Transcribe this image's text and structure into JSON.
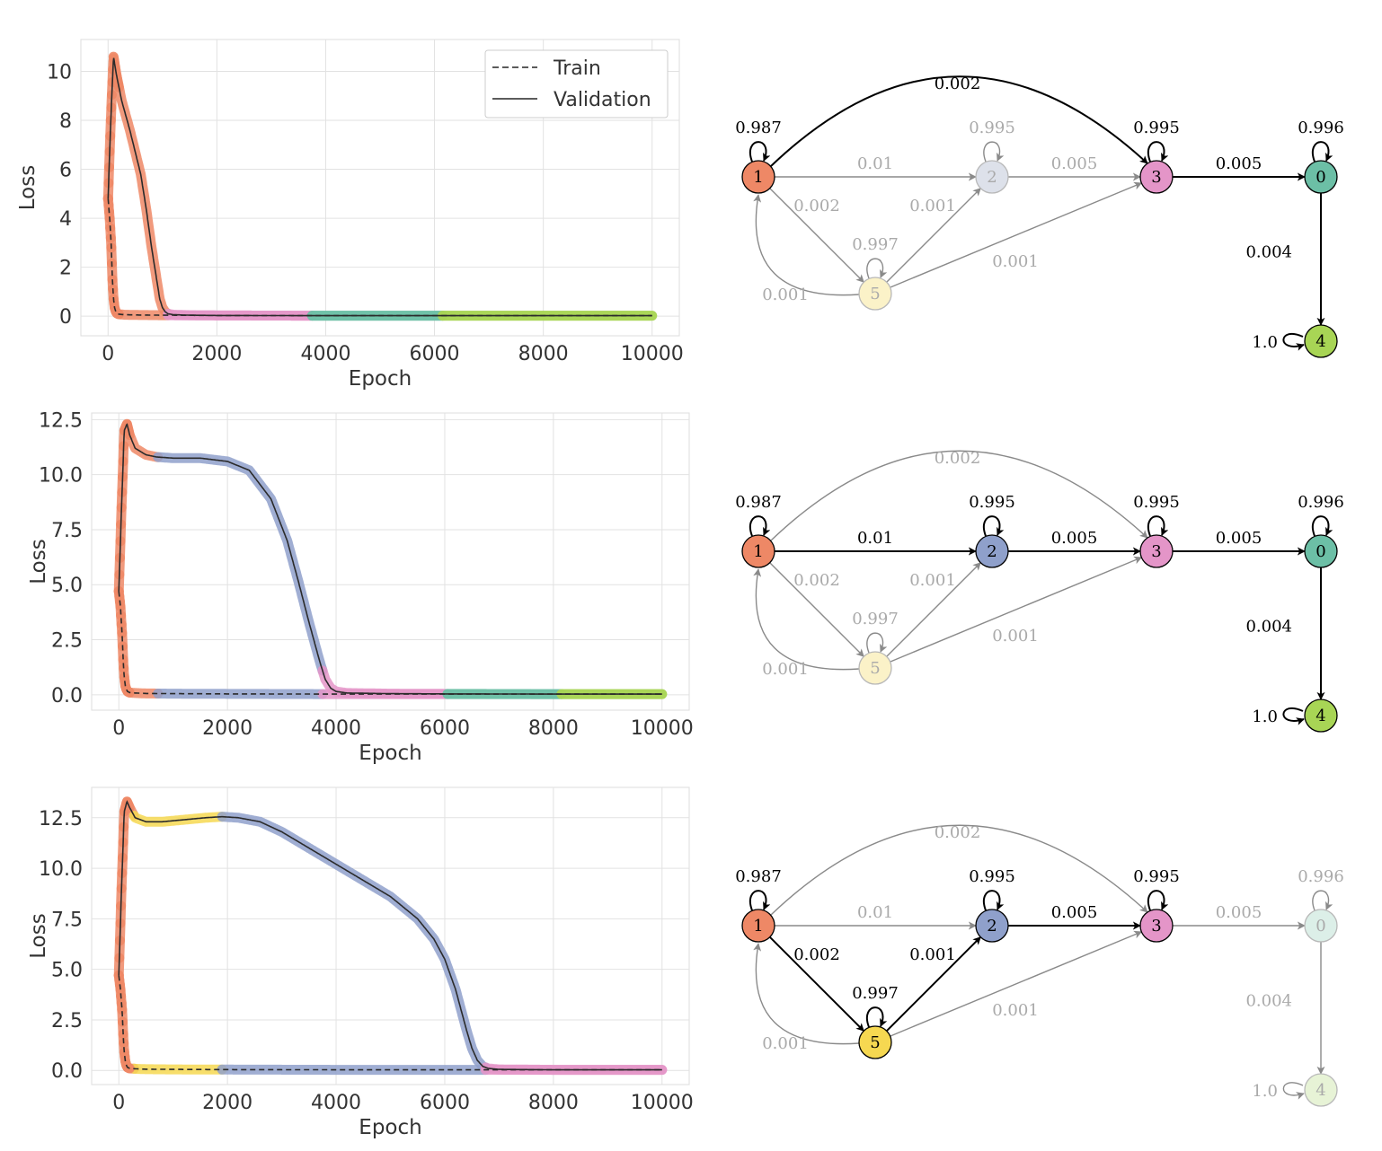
{
  "chart_data": [
    {
      "type": "line",
      "xlabel": "Epoch",
      "ylabel": "Loss",
      "xlim": [
        -500,
        10500
      ],
      "ylim": [
        -0.8,
        11.3
      ],
      "xticks": [
        0,
        2000,
        4000,
        6000,
        8000,
        10000
      ],
      "yticks": [
        0,
        2,
        4,
        6,
        8,
        10
      ],
      "ytick_labels": [
        "0",
        "2",
        "4",
        "6",
        "8",
        "10"
      ],
      "legend": {
        "position": "top-right",
        "train_label": "Train",
        "validation_label": "Validation"
      },
      "series": [
        {
          "name": "Validation",
          "style": "solid",
          "x": [
            0,
            50,
            100,
            150,
            250,
            400,
            600,
            700,
            800,
            900,
            950,
            1000,
            1050,
            1100,
            1200,
            1500,
            2000,
            4000,
            6000,
            8000,
            10000
          ],
          "y": [
            4.8,
            8.0,
            10.6,
            9.9,
            8.8,
            7.6,
            5.8,
            4.4,
            2.8,
            1.4,
            0.7,
            0.35,
            0.18,
            0.1,
            0.06,
            0.04,
            0.03,
            0.02,
            0.02,
            0.02,
            0.02
          ]
        },
        {
          "name": "Train",
          "style": "dashed",
          "x": [
            0,
            30,
            60,
            80,
            100,
            120,
            140,
            160,
            200,
            300,
            500,
            1000,
            2000,
            4000,
            6000,
            8000,
            10000
          ],
          "y": [
            4.8,
            4.0,
            2.8,
            1.5,
            0.7,
            0.35,
            0.2,
            0.12,
            0.08,
            0.06,
            0.05,
            0.04,
            0.03,
            0.02,
            0.02,
            0.02,
            0.02
          ]
        }
      ],
      "phases": [
        {
          "start": 0,
          "end": 1100,
          "color": "#ee8866"
        },
        {
          "start": 1100,
          "end": 3750,
          "color": "#e495c8"
        },
        {
          "start": 3750,
          "end": 6150,
          "color": "#6cbfa6"
        },
        {
          "start": 6150,
          "end": 10000,
          "color": "#a8d555"
        }
      ]
    },
    {
      "type": "line",
      "xlabel": "Epoch",
      "ylabel": "Loss",
      "xlim": [
        -500,
        10500
      ],
      "ylim": [
        -0.7,
        12.8
      ],
      "xticks": [
        0,
        2000,
        4000,
        6000,
        8000,
        10000
      ],
      "yticks": [
        0,
        2.5,
        5.0,
        7.5,
        10.0,
        12.5
      ],
      "ytick_labels": [
        "0.0",
        "2.5",
        "5.0",
        "7.5",
        "10.0",
        "12.5"
      ],
      "series": [
        {
          "name": "Validation",
          "style": "solid",
          "x": [
            0,
            50,
            100,
            150,
            200,
            300,
            500,
            700,
            1000,
            1500,
            2000,
            2400,
            2800,
            3100,
            3300,
            3500,
            3700,
            3800,
            3900,
            4000,
            4200,
            5000,
            6000,
            8000,
            10000
          ],
          "y": [
            4.7,
            8.5,
            12.0,
            12.3,
            11.8,
            11.2,
            10.9,
            10.8,
            10.75,
            10.75,
            10.6,
            10.2,
            8.9,
            7.0,
            5.2,
            3.3,
            1.5,
            0.7,
            0.3,
            0.15,
            0.08,
            0.05,
            0.04,
            0.03,
            0.03
          ]
        },
        {
          "name": "Train",
          "style": "dashed",
          "x": [
            0,
            30,
            60,
            80,
            100,
            120,
            140,
            160,
            200,
            300,
            500,
            1000,
            2000,
            4000,
            6000,
            8000,
            10000
          ],
          "y": [
            4.7,
            4.0,
            2.8,
            1.6,
            0.8,
            0.4,
            0.25,
            0.15,
            0.1,
            0.08,
            0.06,
            0.05,
            0.04,
            0.03,
            0.03,
            0.03,
            0.03
          ]
        }
      ],
      "phases": [
        {
          "start": 0,
          "end": 720,
          "color": "#ee8866"
        },
        {
          "start": 720,
          "end": 3750,
          "color": "#8fa0cb"
        },
        {
          "start": 3750,
          "end": 6050,
          "color": "#e495c8"
        },
        {
          "start": 6050,
          "end": 8150,
          "color": "#6cbfa6"
        },
        {
          "start": 8150,
          "end": 10000,
          "color": "#a8d555"
        }
      ]
    },
    {
      "type": "line",
      "xlabel": "Epoch",
      "ylabel": "Loss",
      "xlim": [
        -500,
        10500
      ],
      "ylim": [
        -0.7,
        14.0
      ],
      "xticks": [
        0,
        2000,
        4000,
        6000,
        8000,
        10000
      ],
      "yticks": [
        0,
        2.5,
        5.0,
        7.5,
        10.0,
        12.5
      ],
      "ytick_labels": [
        "0.0",
        "2.5",
        "5.0",
        "7.5",
        "10.0",
        "12.5"
      ],
      "series": [
        {
          "name": "Validation",
          "style": "solid",
          "x": [
            0,
            50,
            100,
            150,
            200,
            300,
            500,
            800,
            1200,
            1600,
            1900,
            2200,
            2600,
            3000,
            3500,
            4000,
            4500,
            5000,
            5500,
            5800,
            6000,
            6200,
            6300,
            6400,
            6500,
            6600,
            6700,
            6800,
            7000,
            8000,
            10000
          ],
          "y": [
            4.7,
            9.0,
            12.8,
            13.3,
            13.0,
            12.5,
            12.3,
            12.3,
            12.4,
            12.5,
            12.55,
            12.5,
            12.3,
            11.8,
            11.0,
            10.2,
            9.4,
            8.6,
            7.5,
            6.5,
            5.5,
            4.0,
            3.0,
            2.0,
            1.1,
            0.5,
            0.2,
            0.1,
            0.05,
            0.03,
            0.03
          ]
        },
        {
          "name": "Train",
          "style": "dashed",
          "x": [
            0,
            30,
            60,
            80,
            100,
            120,
            140,
            160,
            200,
            300,
            500,
            1000,
            2000,
            4000,
            6000,
            8000,
            10000
          ],
          "y": [
            4.7,
            4.0,
            3.0,
            1.8,
            0.9,
            0.45,
            0.25,
            0.15,
            0.1,
            0.08,
            0.06,
            0.05,
            0.04,
            0.03,
            0.03,
            0.03,
            0.03
          ]
        }
      ],
      "phases": [
        {
          "start": 0,
          "end": 280,
          "color": "#ee8866"
        },
        {
          "start": 280,
          "end": 1900,
          "color": "#f6d851"
        },
        {
          "start": 1900,
          "end": 6750,
          "color": "#8fa0cb"
        },
        {
          "start": 6750,
          "end": 10000,
          "color": "#e495c8"
        }
      ]
    }
  ],
  "graphs": [
    {
      "nodes": [
        {
          "id": "1",
          "label": "1",
          "color": "#ee8866",
          "faded": false,
          "self_loop": "0.987"
        },
        {
          "id": "2",
          "label": "2",
          "color": "#dde1ea",
          "faded": true,
          "self_loop": "0.995"
        },
        {
          "id": "3",
          "label": "3",
          "color": "#e495c8",
          "faded": false,
          "self_loop": "0.995"
        },
        {
          "id": "0",
          "label": "0",
          "color": "#6cbfa6",
          "faded": false,
          "self_loop": "0.996"
        },
        {
          "id": "5",
          "label": "5",
          "color": "#fbf2c8",
          "faded": true,
          "self_loop": "0.997"
        },
        {
          "id": "4",
          "label": "4",
          "color": "#a8d555",
          "faded": false,
          "self_loop": "1.0"
        }
      ],
      "edges": [
        {
          "from": "1",
          "to": "3",
          "label": "0.002",
          "active": true
        },
        {
          "from": "1",
          "to": "2",
          "label": "0.01",
          "active": false
        },
        {
          "from": "2",
          "to": "3",
          "label": "0.005",
          "active": false
        },
        {
          "from": "3",
          "to": "0",
          "label": "0.005",
          "active": true
        },
        {
          "from": "1",
          "to": "5",
          "label": "0.002",
          "active": false
        },
        {
          "from": "5",
          "to": "2",
          "label": "0.001",
          "active": false
        },
        {
          "from": "5",
          "to": "3",
          "label": "0.001",
          "active": false
        },
        {
          "from": "5",
          "to": "1",
          "label": "0.001",
          "active": false
        },
        {
          "from": "0",
          "to": "4",
          "label": "0.004",
          "active": true
        }
      ]
    },
    {
      "nodes": [
        {
          "id": "1",
          "label": "1",
          "color": "#ee8866",
          "faded": false,
          "self_loop": "0.987"
        },
        {
          "id": "2",
          "label": "2",
          "color": "#8fa0cb",
          "faded": false,
          "self_loop": "0.995"
        },
        {
          "id": "3",
          "label": "3",
          "color": "#e495c8",
          "faded": false,
          "self_loop": "0.995"
        },
        {
          "id": "0",
          "label": "0",
          "color": "#6cbfa6",
          "faded": false,
          "self_loop": "0.996"
        },
        {
          "id": "5",
          "label": "5",
          "color": "#fbf2c8",
          "faded": true,
          "self_loop": "0.997"
        },
        {
          "id": "4",
          "label": "4",
          "color": "#a8d555",
          "faded": false,
          "self_loop": "1.0"
        }
      ],
      "edges": [
        {
          "from": "1",
          "to": "3",
          "label": "0.002",
          "active": false
        },
        {
          "from": "1",
          "to": "2",
          "label": "0.01",
          "active": true
        },
        {
          "from": "2",
          "to": "3",
          "label": "0.005",
          "active": true
        },
        {
          "from": "3",
          "to": "0",
          "label": "0.005",
          "active": true
        },
        {
          "from": "1",
          "to": "5",
          "label": "0.002",
          "active": false
        },
        {
          "from": "5",
          "to": "2",
          "label": "0.001",
          "active": false
        },
        {
          "from": "5",
          "to": "3",
          "label": "0.001",
          "active": false
        },
        {
          "from": "5",
          "to": "1",
          "label": "0.001",
          "active": false
        },
        {
          "from": "0",
          "to": "4",
          "label": "0.004",
          "active": true
        }
      ]
    },
    {
      "nodes": [
        {
          "id": "1",
          "label": "1",
          "color": "#ee8866",
          "faded": false,
          "self_loop": "0.987"
        },
        {
          "id": "2",
          "label": "2",
          "color": "#8fa0cb",
          "faded": false,
          "self_loop": "0.995"
        },
        {
          "id": "3",
          "label": "3",
          "color": "#e495c8",
          "faded": false,
          "self_loop": "0.995"
        },
        {
          "id": "0",
          "label": "0",
          "color": "#dcefe8",
          "faded": true,
          "self_loop": "0.996"
        },
        {
          "id": "5",
          "label": "5",
          "color": "#f6d851",
          "faded": false,
          "self_loop": "0.997"
        },
        {
          "id": "4",
          "label": "4",
          "color": "#e7f3d6",
          "faded": true,
          "self_loop": "1.0"
        }
      ],
      "edges": [
        {
          "from": "1",
          "to": "3",
          "label": "0.002",
          "active": false
        },
        {
          "from": "1",
          "to": "2",
          "label": "0.01",
          "active": false
        },
        {
          "from": "2",
          "to": "3",
          "label": "0.005",
          "active": true
        },
        {
          "from": "3",
          "to": "0",
          "label": "0.005",
          "active": false
        },
        {
          "from": "1",
          "to": "5",
          "label": "0.002",
          "active": true
        },
        {
          "from": "5",
          "to": "2",
          "label": "0.001",
          "active": true
        },
        {
          "from": "5",
          "to": "3",
          "label": "0.001",
          "active": false
        },
        {
          "from": "5",
          "to": "1",
          "label": "0.001",
          "active": false
        },
        {
          "from": "0",
          "to": "4",
          "label": "0.004",
          "active": false
        }
      ]
    }
  ]
}
